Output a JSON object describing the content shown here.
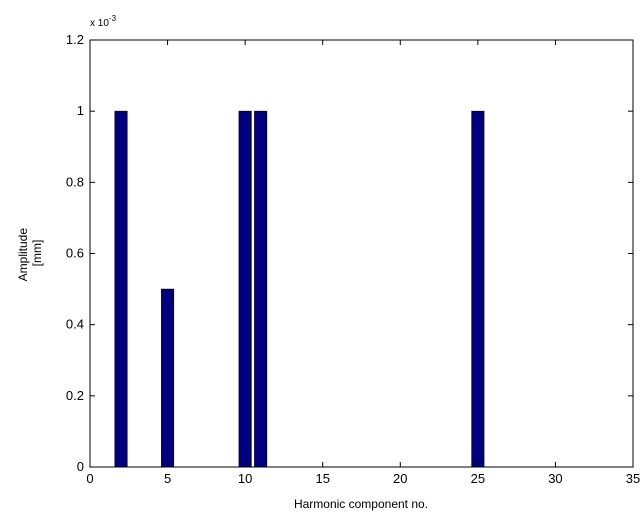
{
  "chart_data": {
    "type": "bar",
    "x": [
      2,
      5,
      10,
      11,
      25
    ],
    "values": [
      0.001,
      0.0005,
      0.001,
      0.001,
      0.001
    ],
    "xlabel": "Harmonic component no.",
    "ylabel_line1": "Amplitude",
    "ylabel_line2": "[mm]",
    "xlim": [
      0,
      35
    ],
    "ylim": [
      0,
      0.0012
    ],
    "xticks": [
      0,
      5,
      10,
      15,
      20,
      25,
      30,
      35
    ],
    "xtick_labels": [
      "0",
      "5",
      "10",
      "15",
      "20",
      "25",
      "30",
      "35"
    ],
    "yticks": [
      0,
      0.0002,
      0.0004,
      0.0006,
      0.0008,
      0.001,
      0.0012
    ],
    "ytick_labels": [
      "0",
      "0.2",
      "0.4",
      "0.6",
      "0.8",
      "1",
      "1.2"
    ],
    "y_exponent_base": "x 10",
    "y_exponent_power": "-3",
    "bar_color": "#00007f",
    "grid": false,
    "legend": "none"
  }
}
